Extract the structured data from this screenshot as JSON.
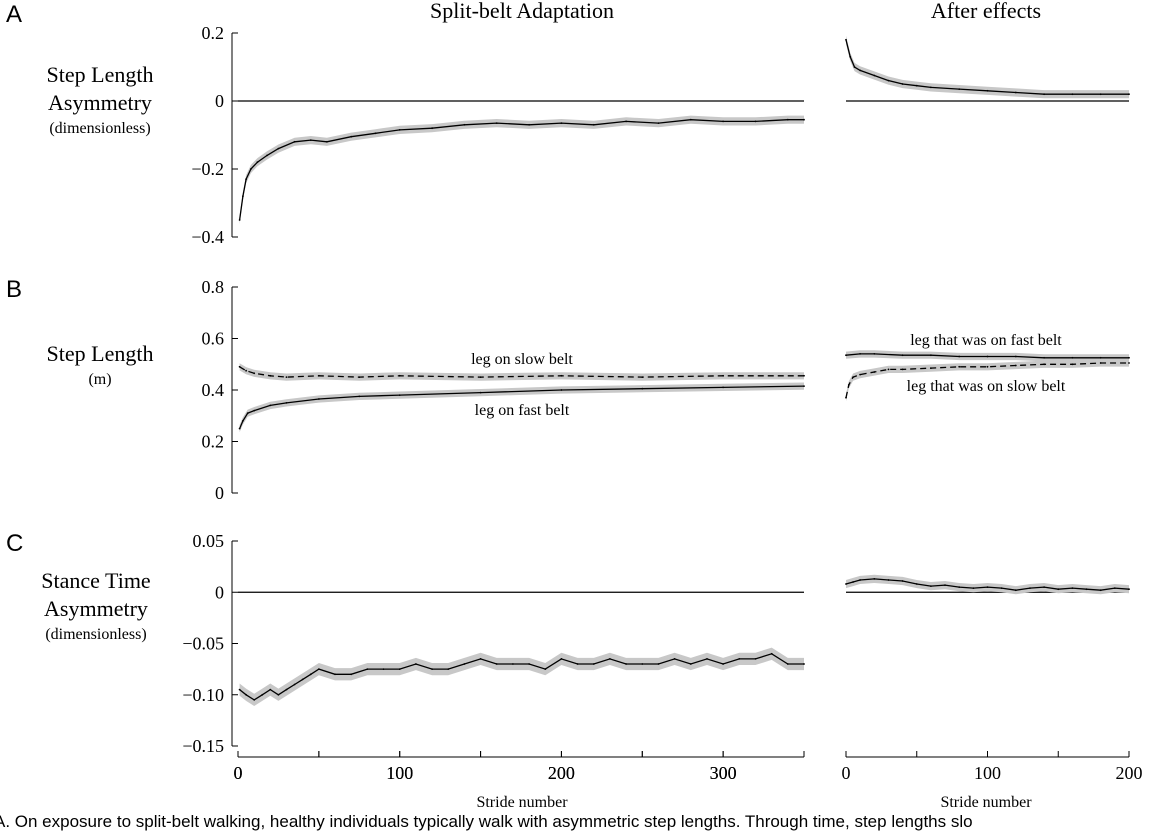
{
  "caption": "A. On exposure to split-belt walking, healthy individuals typically walk with asymmetric step lengths. Through time, step lengths slo",
  "xlabel": "Stride number",
  "column_titles": [
    "Split-belt Adaptation",
    "After effects"
  ],
  "chart_data": [
    {
      "type": "line",
      "panel": "A",
      "subplot": "Split-belt Adaptation",
      "ylabel_lines": [
        "Step Length",
        "Asymmetry"
      ],
      "ylabel_unit": "(dimensionless)",
      "xlim": [
        0,
        350
      ],
      "ylim": [
        -0.4,
        0.2
      ],
      "xticks": [
        "0",
        "100",
        "200",
        "300"
      ],
      "yticks": [
        "0.2",
        "0",
        "−0.2",
        "−0.4"
      ],
      "reference_line": 0,
      "series": [
        {
          "style": "solid",
          "shaded_band": true,
          "x": [
            1,
            3,
            5,
            8,
            12,
            18,
            25,
            35,
            45,
            55,
            70,
            85,
            100,
            120,
            140,
            160,
            180,
            200,
            220,
            240,
            260,
            280,
            300,
            320,
            340,
            350
          ],
          "y": [
            -0.35,
            -0.28,
            -0.23,
            -0.2,
            -0.18,
            -0.16,
            -0.14,
            -0.12,
            -0.115,
            -0.12,
            -0.105,
            -0.095,
            -0.085,
            -0.08,
            -0.07,
            -0.065,
            -0.07,
            -0.065,
            -0.07,
            -0.06,
            -0.065,
            -0.055,
            -0.06,
            -0.06,
            -0.055,
            -0.055
          ]
        }
      ]
    },
    {
      "type": "line",
      "panel": "A",
      "subplot": "After effects",
      "xlim": [
        0,
        200
      ],
      "ylim": [
        -0.4,
        0.2
      ],
      "reference_line": 0,
      "series": [
        {
          "style": "solid",
          "shaded_band": true,
          "x": [
            0,
            3,
            6,
            10,
            20,
            30,
            40,
            50,
            60,
            80,
            100,
            120,
            140,
            160,
            180,
            200
          ],
          "y": [
            0.18,
            0.13,
            0.1,
            0.09,
            0.075,
            0.06,
            0.05,
            0.045,
            0.04,
            0.035,
            0.03,
            0.025,
            0.02,
            0.02,
            0.02,
            0.02
          ]
        }
      ]
    },
    {
      "type": "line",
      "panel": "B",
      "subplot": "Split-belt Adaptation",
      "ylabel_lines": [
        "Step Length"
      ],
      "ylabel_unit": "(m)",
      "xlim": [
        0,
        350
      ],
      "ylim": [
        0,
        0.8
      ],
      "yticks": [
        "0.8",
        "0.6",
        "0.4",
        "0.2",
        "0"
      ],
      "series": [
        {
          "name": "leg on slow belt",
          "style": "dashed",
          "shaded_band": true,
          "x": [
            1,
            5,
            10,
            20,
            30,
            50,
            75,
            100,
            150,
            200,
            250,
            300,
            350
          ],
          "y": [
            0.49,
            0.475,
            0.465,
            0.455,
            0.45,
            0.455,
            0.45,
            0.455,
            0.45,
            0.455,
            0.45,
            0.455,
            0.455
          ]
        },
        {
          "name": "leg on fast belt",
          "style": "solid",
          "shaded_band": true,
          "x": [
            1,
            3,
            6,
            10,
            20,
            30,
            50,
            75,
            100,
            150,
            200,
            250,
            300,
            350
          ],
          "y": [
            0.25,
            0.28,
            0.31,
            0.32,
            0.34,
            0.35,
            0.365,
            0.375,
            0.38,
            0.39,
            0.4,
            0.405,
            0.41,
            0.415
          ]
        }
      ]
    },
    {
      "type": "line",
      "panel": "B",
      "subplot": "After effects",
      "xlim": [
        0,
        200
      ],
      "ylim": [
        0,
        0.8
      ],
      "series": [
        {
          "name": "leg that was on fast belt",
          "style": "solid",
          "shaded_band": true,
          "x": [
            0,
            10,
            20,
            40,
            60,
            80,
            100,
            120,
            140,
            160,
            180,
            200
          ],
          "y": [
            0.535,
            0.54,
            0.54,
            0.535,
            0.535,
            0.53,
            0.53,
            0.53,
            0.525,
            0.525,
            0.525,
            0.525
          ]
        },
        {
          "name": "leg that was on slow belt",
          "style": "dashed",
          "shaded_band": true,
          "x": [
            0,
            2,
            5,
            10,
            20,
            30,
            40,
            60,
            80,
            100,
            120,
            140,
            160,
            180,
            200
          ],
          "y": [
            0.37,
            0.42,
            0.45,
            0.46,
            0.47,
            0.48,
            0.48,
            0.485,
            0.49,
            0.49,
            0.495,
            0.5,
            0.5,
            0.505,
            0.505
          ]
        }
      ]
    },
    {
      "type": "line",
      "panel": "C",
      "subplot": "Split-belt Adaptation",
      "ylabel_lines": [
        "Stance Time",
        "Asymmetry"
      ],
      "ylabel_unit": "(dimensionless)",
      "xlim": [
        0,
        350
      ],
      "ylim": [
        -0.15,
        0.05
      ],
      "xticks": [
        "0",
        "100",
        "200",
        "300"
      ],
      "yticks": [
        "0.05",
        "0",
        "−0.05",
        "−0.10",
        "−0.15"
      ],
      "reference_line": 0,
      "series": [
        {
          "style": "solid",
          "shaded_band": true,
          "x": [
            1,
            5,
            10,
            15,
            20,
            25,
            30,
            35,
            40,
            45,
            50,
            60,
            70,
            80,
            90,
            100,
            110,
            120,
            130,
            140,
            150,
            160,
            170,
            180,
            190,
            200,
            210,
            220,
            230,
            240,
            250,
            260,
            270,
            280,
            290,
            300,
            310,
            320,
            330,
            340,
            350
          ],
          "y": [
            -0.095,
            -0.1,
            -0.105,
            -0.1,
            -0.095,
            -0.1,
            -0.095,
            -0.09,
            -0.085,
            -0.08,
            -0.075,
            -0.08,
            -0.08,
            -0.075,
            -0.075,
            -0.075,
            -0.07,
            -0.075,
            -0.075,
            -0.07,
            -0.065,
            -0.07,
            -0.07,
            -0.07,
            -0.075,
            -0.065,
            -0.07,
            -0.07,
            -0.065,
            -0.07,
            -0.07,
            -0.07,
            -0.065,
            -0.07,
            -0.065,
            -0.07,
            -0.065,
            -0.065,
            -0.06,
            -0.07,
            -0.07
          ]
        }
      ]
    },
    {
      "type": "line",
      "panel": "C",
      "subplot": "After effects",
      "xlim": [
        0,
        200
      ],
      "xticks": [
        "0",
        "100",
        "200"
      ],
      "ylim": [
        -0.15,
        0.05
      ],
      "reference_line": 0,
      "series": [
        {
          "style": "solid",
          "shaded_band": true,
          "x": [
            0,
            5,
            10,
            20,
            30,
            40,
            50,
            60,
            70,
            80,
            90,
            100,
            110,
            120,
            130,
            140,
            150,
            160,
            170,
            180,
            190,
            200
          ],
          "y": [
            0.008,
            0.01,
            0.012,
            0.013,
            0.012,
            0.011,
            0.008,
            0.006,
            0.007,
            0.005,
            0.004,
            0.005,
            0.004,
            0.002,
            0.004,
            0.005,
            0.003,
            0.004,
            0.003,
            0.002,
            0.004,
            0.003
          ]
        }
      ]
    }
  ]
}
